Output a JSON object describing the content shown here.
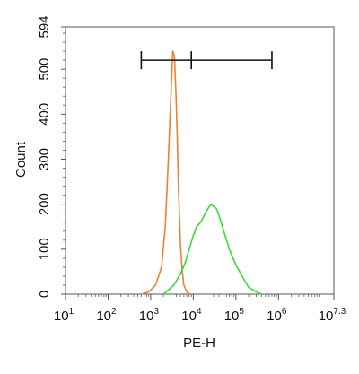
{
  "chart_data": {
    "type": "line",
    "title": "",
    "xlabel": "PE-H",
    "ylabel": "Count",
    "x_scale": "log10",
    "xlim": [
      10,
      19952623
    ],
    "ylim": [
      0,
      594
    ],
    "x_ticks": [
      {
        "value": 10,
        "base": "10",
        "exp": "1"
      },
      {
        "value": 100,
        "base": "10",
        "exp": "2"
      },
      {
        "value": 1000,
        "base": "10",
        "exp": "3"
      },
      {
        "value": 10000,
        "base": "10",
        "exp": "4"
      },
      {
        "value": 100000,
        "base": "10",
        "exp": "5"
      },
      {
        "value": 1000000,
        "base": "10",
        "exp": "6"
      },
      {
        "value": 19952623,
        "base": "10",
        "exp": "7.3"
      }
    ],
    "y_ticks": [
      "0",
      "100",
      "200",
      "300",
      "400",
      "500",
      "594"
    ],
    "grid": false,
    "gate": {
      "x_start": 600,
      "x_mid": 9000,
      "x_end": 700000,
      "y": 520
    },
    "series": [
      {
        "color": "#f08030",
        "x": [
          600,
          900,
          1300,
          1800,
          2200,
          2600,
          3000,
          3300,
          3600,
          3900,
          4200,
          4500,
          5000,
          5500,
          6000,
          7000,
          8500
        ],
        "y": [
          0,
          5,
          20,
          60,
          150,
          300,
          450,
          540,
          530,
          450,
          350,
          230,
          110,
          50,
          20,
          5,
          0
        ]
      },
      {
        "color": "#33dd33",
        "x": [
          2000,
          3500,
          5000,
          6500,
          8000,
          10000,
          12000,
          15000,
          18000,
          22000,
          26000,
          30000,
          35000,
          40000,
          50000,
          70000,
          100000,
          150000,
          200000,
          300000,
          400000
        ],
        "y": [
          0,
          20,
          45,
          70,
          100,
          130,
          150,
          160,
          175,
          190,
          200,
          195,
          190,
          175,
          145,
          100,
          65,
          35,
          15,
          5,
          0
        ]
      }
    ]
  }
}
